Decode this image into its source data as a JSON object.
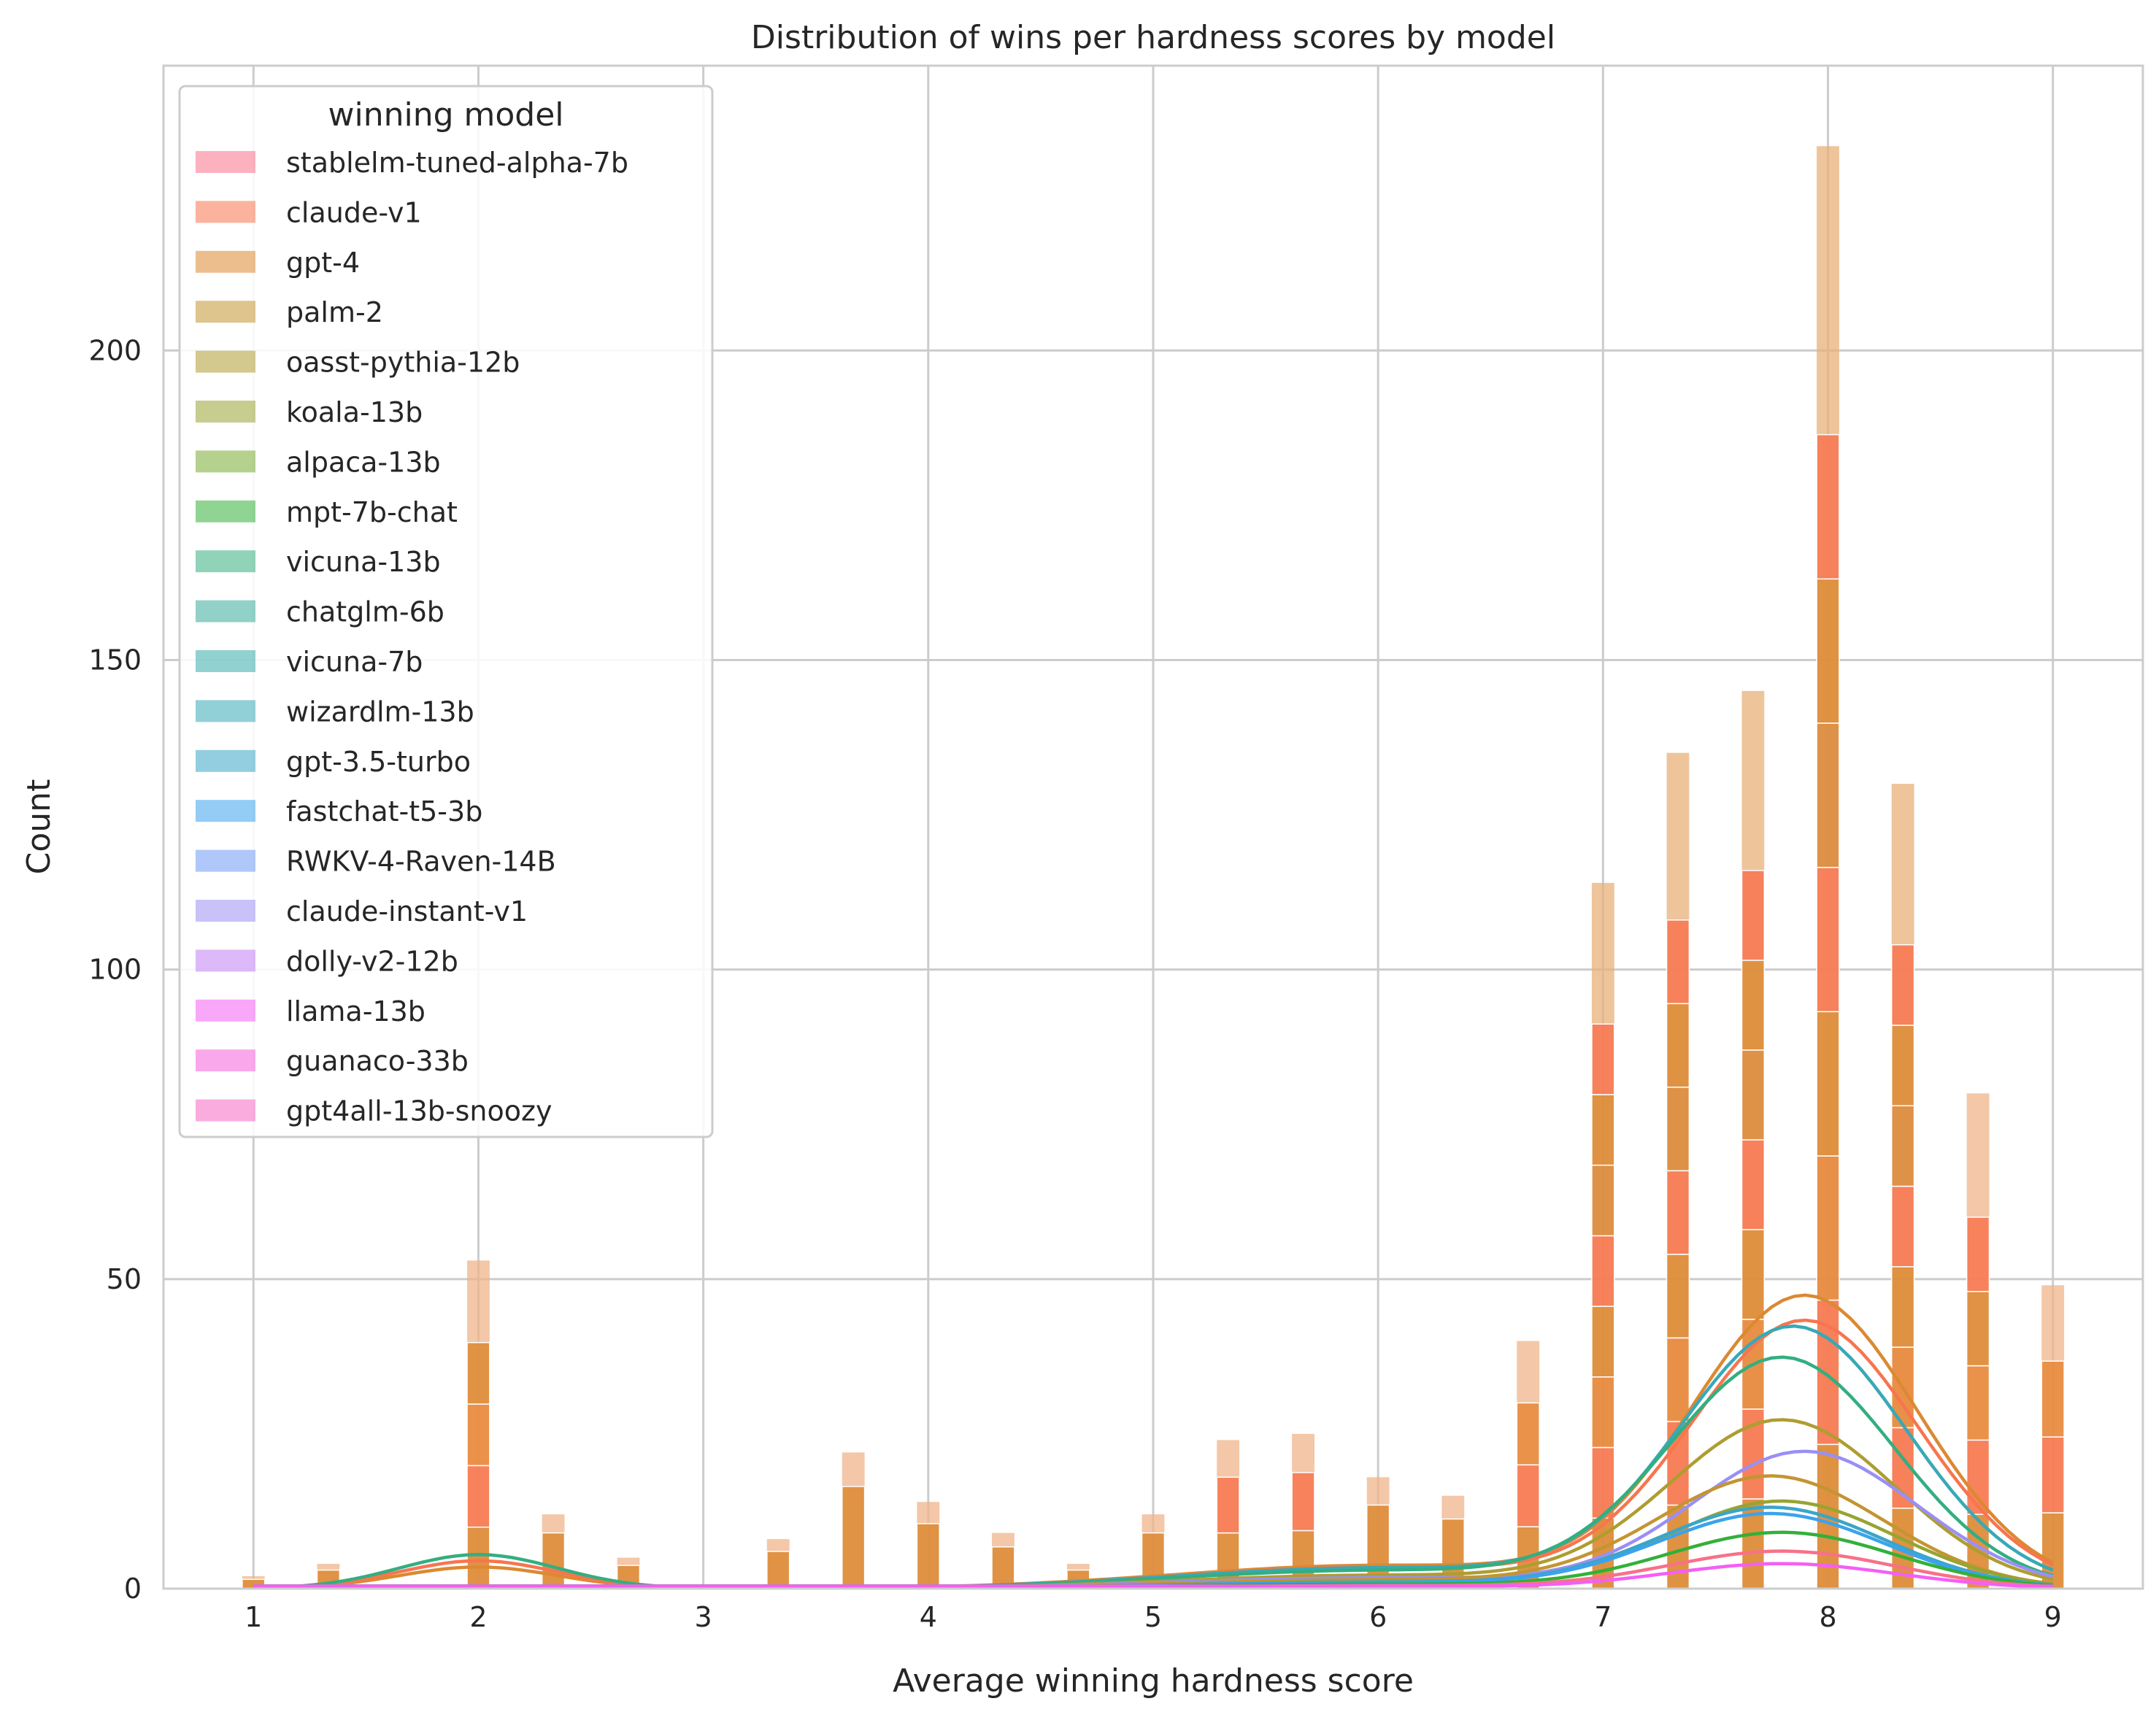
{
  "chart_data": {
    "type": "bar",
    "title": "Distribution of wins per hardness scores by model",
    "xlabel": "Average winning hardness score",
    "ylabel": "Count",
    "xlim": [
      0.6,
      9.4
    ],
    "ylim": [
      0,
      246
    ],
    "xticks": [
      1,
      2,
      3,
      4,
      5,
      6,
      7,
      8,
      9
    ],
    "yticks": [
      0,
      50,
      100,
      150,
      200
    ],
    "grid": true,
    "legend": {
      "title": "winning model",
      "position": "top-left"
    },
    "x": [
      1,
      1.333,
      2,
      2.333,
      2.667,
      3.333,
      3.667,
      4,
      4.333,
      4.667,
      5,
      5.333,
      5.667,
      6,
      6.333,
      6.667,
      7,
      7.333,
      7.667,
      8,
      8.333,
      8.667,
      9
    ],
    "stack_totals": [
      2,
      4,
      53,
      12,
      5,
      8,
      22,
      14,
      9,
      4,
      12,
      24,
      25,
      18,
      15,
      40,
      114,
      135,
      145,
      233,
      130,
      80,
      49
    ],
    "series": [
      {
        "name": "stablelm-tuned-alpha-7b",
        "color": "#f77189"
      },
      {
        "name": "claude-v1",
        "color": "#f7754f"
      },
      {
        "name": "gpt-4",
        "color": "#dc8932"
      },
      {
        "name": "palm-2",
        "color": "#c39532"
      },
      {
        "name": "oasst-pythia-12b",
        "color": "#ae9d31"
      },
      {
        "name": "koala-13b",
        "color": "#97a431"
      },
      {
        "name": "alpaca-13b",
        "color": "#77ab31"
      },
      {
        "name": "mpt-7b-chat",
        "color": "#33b039"
      },
      {
        "name": "vicuna-13b",
        "color": "#34ae80"
      },
      {
        "name": "chatglm-6b",
        "color": "#36ac99"
      },
      {
        "name": "vicuna-7b",
        "color": "#37abaa"
      },
      {
        "name": "wizardlm-13b",
        "color": "#38a9b6"
      },
      {
        "name": "gpt-3.5-turbo",
        "color": "#3aa6c7"
      },
      {
        "name": "fastchat-t5-3b",
        "color": "#3ba3ec"
      },
      {
        "name": "RWKV-4-Raven-14B",
        "color": "#6e9bf4"
      },
      {
        "name": "claude-instant-v1",
        "color": "#9a8ff4"
      },
      {
        "name": "dolly-v2-12b",
        "color": "#c17ff4"
      },
      {
        "name": "llama-13b",
        "color": "#f45ff4"
      },
      {
        "name": "guanaco-33b",
        "color": "#f561dd"
      },
      {
        "name": "gpt4all-13b-snoozy",
        "color": "#f668c2"
      }
    ],
    "kde_peaks": [
      {
        "name": "gpt-4",
        "peak_x": 7.9,
        "peak_y": 47
      },
      {
        "name": "claude-v1",
        "peak_x": 7.9,
        "peak_y": 43
      },
      {
        "name": "wizardlm-13b",
        "peak_x": 7.85,
        "peak_y": 42
      },
      {
        "name": "vicuna-13b",
        "peak_x": 7.8,
        "peak_y": 37
      },
      {
        "name": "oasst-pythia-12b",
        "peak_x": 7.8,
        "peak_y": 27
      },
      {
        "name": "claude-instant-v1",
        "peak_x": 7.9,
        "peak_y": 22
      },
      {
        "name": "palm-2",
        "peak_x": 7.75,
        "peak_y": 18
      },
      {
        "name": "koala-13b",
        "peak_x": 7.8,
        "peak_y": 14
      },
      {
        "name": "gpt-3.5-turbo",
        "peak_x": 7.75,
        "peak_y": 13
      },
      {
        "name": "fastchat-t5-3b",
        "peak_x": 7.75,
        "peak_y": 12
      },
      {
        "name": "mpt-7b-chat",
        "peak_x": 7.8,
        "peak_y": 9
      },
      {
        "name": "stablelm-tuned-alpha-7b",
        "peak_x": 7.8,
        "peak_y": 6
      },
      {
        "name": "llama-13b",
        "peak_x": 7.8,
        "peak_y": 4
      }
    ],
    "kde_low_bumps": [
      {
        "name": "vicuna-13b",
        "x": 2.0,
        "y": 5.5
      },
      {
        "name": "claude-v1",
        "x": 2.0,
        "y": 4.5
      },
      {
        "name": "gpt-4",
        "x": 2.0,
        "y": 3.5
      }
    ]
  }
}
